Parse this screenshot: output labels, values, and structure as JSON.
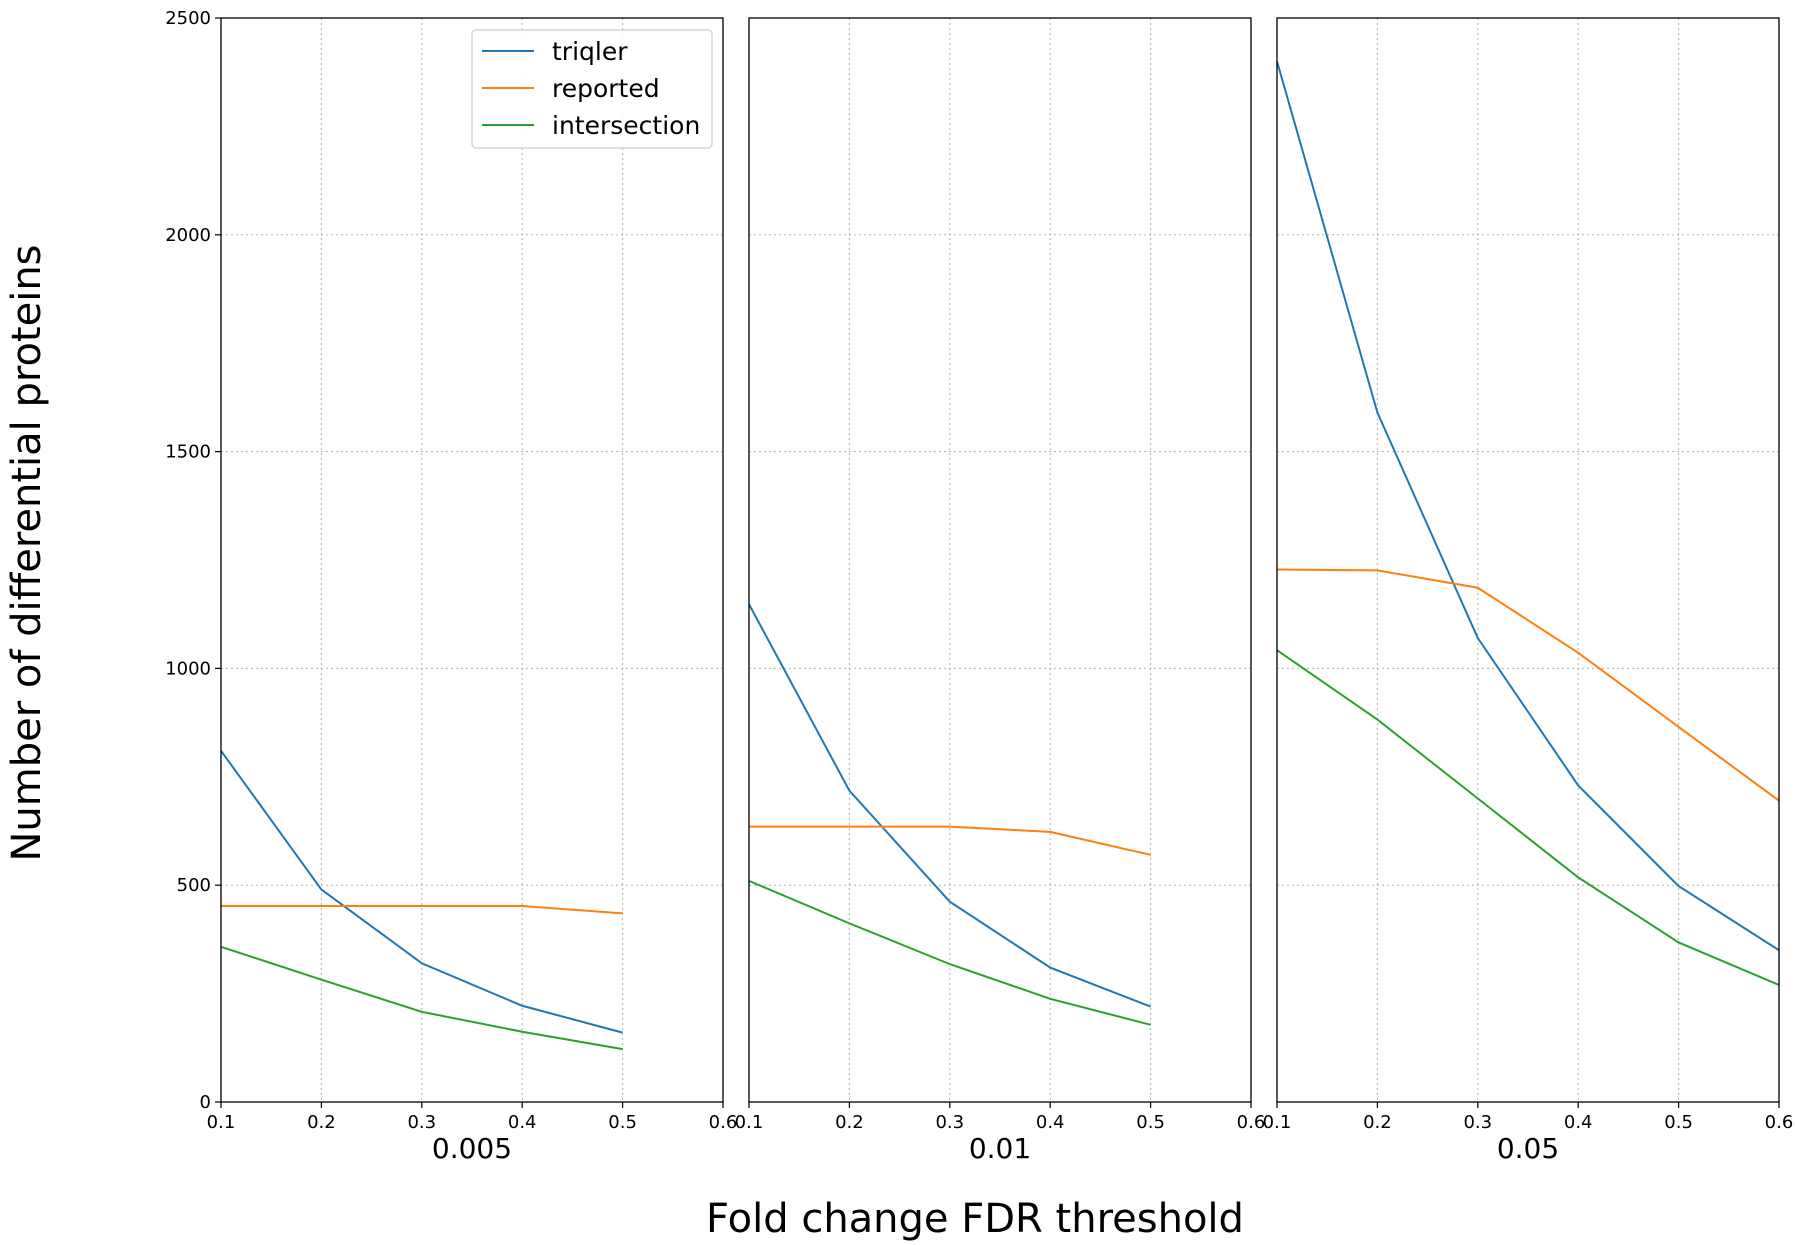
{
  "chart_data": {
    "type": "line",
    "title": "",
    "xlabel": "Fold change FDR threshold",
    "ylabel": "Number of differential proteins",
    "xlim": [
      0.1,
      0.6
    ],
    "ylim": [
      0,
      2500
    ],
    "xticks": [
      "0.1",
      "0.2",
      "0.3",
      "0.4",
      "0.5",
      "0.6"
    ],
    "yticks": [
      "0",
      "500",
      "1000",
      "1500",
      "2000",
      "2500"
    ],
    "grid": true,
    "legend_placement": "top-right of first panel",
    "colors": {
      "triqler": "#1f77b4",
      "reported": "#ff7f0e",
      "intersection": "#2ca02c"
    },
    "panels": [
      {
        "label": "0.005",
        "series": [
          {
            "name": "triqler",
            "x": [
              0.1,
              0.2,
              0.3,
              0.4,
              0.5
            ],
            "values": [
              810,
              490,
              320,
              222,
              160
            ]
          },
          {
            "name": "reported",
            "x": [
              0.1,
              0.2,
              0.3,
              0.4,
              0.5
            ],
            "values": [
              452,
              452,
              452,
              452,
              435
            ]
          },
          {
            "name": "intersection",
            "x": [
              0.1,
              0.2,
              0.3,
              0.4,
              0.5
            ],
            "values": [
              358,
              282,
              208,
              162,
              122
            ]
          }
        ]
      },
      {
        "label": "0.01",
        "series": [
          {
            "name": "triqler",
            "x": [
              0.1,
              0.2,
              0.3,
              0.4,
              0.5
            ],
            "values": [
              1148,
              718,
              462,
              310,
              220
            ]
          },
          {
            "name": "reported",
            "x": [
              0.1,
              0.2,
              0.3,
              0.4,
              0.5
            ],
            "values": [
              635,
              635,
              635,
              623,
              570
            ]
          },
          {
            "name": "intersection",
            "x": [
              0.1,
              0.2,
              0.3,
              0.4,
              0.5
            ],
            "values": [
              510,
              412,
              318,
              238,
              178
            ]
          }
        ]
      },
      {
        "label": "0.05",
        "series": [
          {
            "name": "triqler",
            "x": [
              0.1,
              0.2,
              0.3,
              0.4,
              0.5,
              0.6
            ],
            "values": [
              2400,
              1590,
              1070,
              730,
              498,
              350
            ]
          },
          {
            "name": "reported",
            "x": [
              0.1,
              0.2,
              0.3,
              0.4,
              0.5,
              0.6
            ],
            "values": [
              1228,
              1226,
              1186,
              1036,
              865,
              695
            ]
          },
          {
            "name": "intersection",
            "x": [
              0.1,
              0.2,
              0.3,
              0.4,
              0.5,
              0.6
            ],
            "values": [
              1042,
              882,
              700,
              518,
              368,
              270
            ]
          }
        ]
      }
    ]
  }
}
